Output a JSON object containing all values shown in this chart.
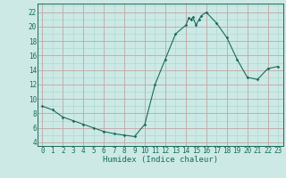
{
  "x": [
    0,
    1,
    2,
    3,
    4,
    5,
    6,
    7,
    8,
    9,
    10,
    11,
    12,
    13,
    14,
    14.3,
    14.5,
    14.7,
    15,
    15.3,
    15.5,
    16,
    17,
    18,
    19,
    20,
    21,
    22,
    23
  ],
  "y": [
    9.0,
    8.5,
    7.5,
    7.0,
    6.5,
    6.0,
    5.5,
    5.2,
    5.0,
    4.8,
    6.5,
    12.0,
    15.5,
    19.0,
    20.2,
    21.2,
    21.0,
    21.3,
    20.2,
    21.0,
    21.5,
    22.0,
    20.5,
    18.5,
    15.5,
    13.0,
    12.7,
    14.2,
    14.5
  ],
  "bg_color": "#cce9e5",
  "line_color": "#1a6b5a",
  "marker_color": "#1a6b5a",
  "grid_minor_color": "#aed8d3",
  "grid_major_color": "#c4a8a8",
  "xlabel": "Humidex (Indice chaleur)",
  "xlim": [
    -0.5,
    23.5
  ],
  "ylim": [
    3.5,
    23.2
  ],
  "xticks": [
    0,
    1,
    2,
    3,
    4,
    5,
    6,
    7,
    8,
    9,
    10,
    11,
    12,
    13,
    14,
    15,
    16,
    17,
    18,
    19,
    20,
    21,
    22,
    23
  ],
  "yticks": [
    4,
    6,
    8,
    10,
    12,
    14,
    16,
    18,
    20,
    22
  ],
  "axis_fontsize": 5.5,
  "label_fontsize": 6.5
}
